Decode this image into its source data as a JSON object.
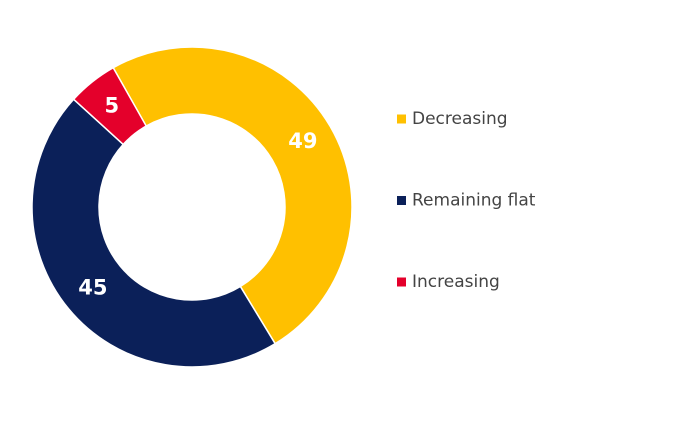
{
  "chart_data": {
    "type": "donut",
    "series": [
      {
        "name": "Decreasing",
        "color": "#ffc000",
        "values": [
          49
        ]
      },
      {
        "name": "Remaining flat",
        "color": "#0b2059",
        "values": [
          45
        ]
      },
      {
        "name": "Increasing",
        "color": "#e4002b",
        "values": [
          5
        ]
      }
    ]
  }
}
